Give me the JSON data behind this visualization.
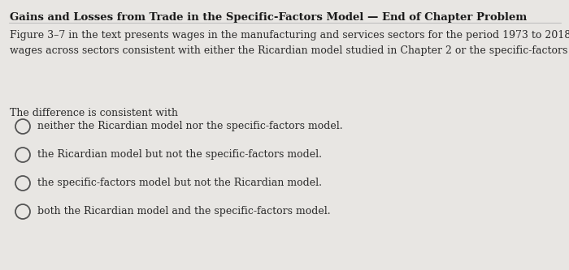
{
  "title": "Gains and Losses from Trade in the Specific-Factors Model — End of Chapter Problem",
  "body_text": "Figure 3–7 in the text presents wages in the manufacturing and services sectors for the period 1973 to 2018. Is the difference in\nwages across sectors consistent with either the Ricardian model studied in Chapter 2 or the specific-factors model?",
  "prompt": "The difference is consistent with",
  "options": [
    "neither the Ricardian model nor the specific-factors model.",
    "the Ricardian model but not the specific-factors model.",
    "the specific-factors model but not the Ricardian model.",
    "both the Ricardian model and the specific-factors model."
  ],
  "bg_color": "#e8e6e3",
  "title_fontsize": 9.5,
  "body_fontsize": 9.0,
  "prompt_fontsize": 9.0,
  "option_fontsize": 9.0,
  "title_color": "#1a1a1a",
  "text_color": "#2a2a2a",
  "circle_color": "#555555"
}
